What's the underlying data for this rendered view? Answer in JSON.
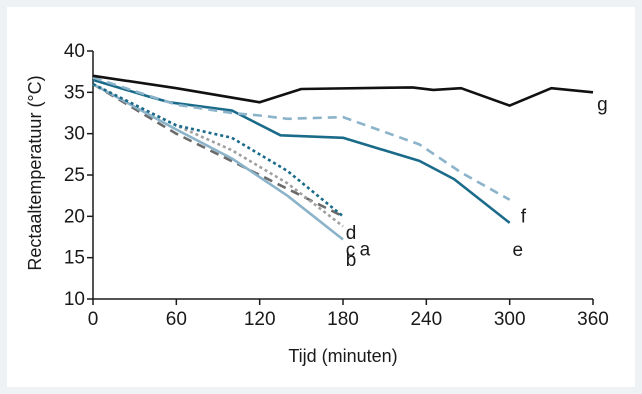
{
  "chart_data": {
    "type": "line",
    "title": "",
    "xlabel": "Tijd (minuten)",
    "ylabel": "Rectaaltemperatuur (°C)",
    "xlim": [
      0,
      360
    ],
    "ylim": [
      10,
      40
    ],
    "x_ticks": [
      0,
      60,
      120,
      180,
      240,
      300,
      360
    ],
    "y_ticks": [
      10,
      15,
      20,
      25,
      30,
      35,
      40
    ],
    "grid": false,
    "legend": "none",
    "series": [
      {
        "name": "a",
        "color": "#6b6b6b",
        "style": "dashed",
        "x": [
          0,
          30,
          60,
          90,
          120,
          150,
          180
        ],
        "y": [
          36.0,
          33.0,
          30.0,
          27.5,
          25.0,
          22.5,
          20.0
        ]
      },
      {
        "name": "b",
        "color": "#8bb3c9",
        "style": "solid",
        "x": [
          0,
          60,
          100,
          140,
          180
        ],
        "y": [
          36.0,
          30.5,
          27.0,
          22.5,
          17.2
        ]
      },
      {
        "name": "c",
        "color": "#a0a0a0",
        "style": "dotted",
        "x": [
          0,
          60,
          100,
          140,
          180
        ],
        "y": [
          36.0,
          31.0,
          28.0,
          24.0,
          18.8
        ]
      },
      {
        "name": "d",
        "color": "#1a6b8a",
        "style": "dotted",
        "x": [
          0,
          60,
          100,
          140,
          180
        ],
        "y": [
          36.0,
          31.0,
          29.5,
          25.5,
          20.0
        ]
      },
      {
        "name": "e",
        "color": "#1a6b8a",
        "style": "solid",
        "x": [
          0,
          40,
          55,
          100,
          135,
          180,
          235,
          260,
          300
        ],
        "y": [
          36.5,
          34.5,
          33.8,
          32.8,
          29.8,
          29.5,
          26.7,
          24.5,
          19.2
        ]
      },
      {
        "name": "f",
        "color": "#8bb3c9",
        "style": "dashed",
        "x": [
          0,
          60,
          100,
          120,
          140,
          180,
          235,
          265,
          300
        ],
        "y": [
          36.8,
          33.5,
          32.5,
          32.2,
          31.8,
          32.0,
          28.7,
          25.3,
          22.0
        ]
      },
      {
        "name": "g",
        "color": "#111111",
        "style": "solid",
        "x": [
          0,
          60,
          120,
          150,
          230,
          245,
          265,
          300,
          330,
          360
        ],
        "y": [
          37.0,
          35.5,
          33.8,
          35.4,
          35.6,
          35.3,
          35.5,
          33.4,
          35.5,
          35.0
        ]
      }
    ],
    "labels": [
      {
        "series": "a",
        "text": "a",
        "x": 192,
        "y": 16.0
      },
      {
        "series": "b",
        "text": "b",
        "x": 182,
        "y": 14.7
      },
      {
        "series": "c",
        "text": "c",
        "x": 182,
        "y": 15.9
      },
      {
        "series": "d",
        "text": "d",
        "x": 182,
        "y": 18.0
      },
      {
        "series": "e",
        "text": "e",
        "x": 302,
        "y": 15.9
      },
      {
        "series": "f",
        "text": "f",
        "x": 308,
        "y": 20.0
      },
      {
        "series": "g",
        "text": "g",
        "x": 363,
        "y": 33.5
      }
    ]
  }
}
